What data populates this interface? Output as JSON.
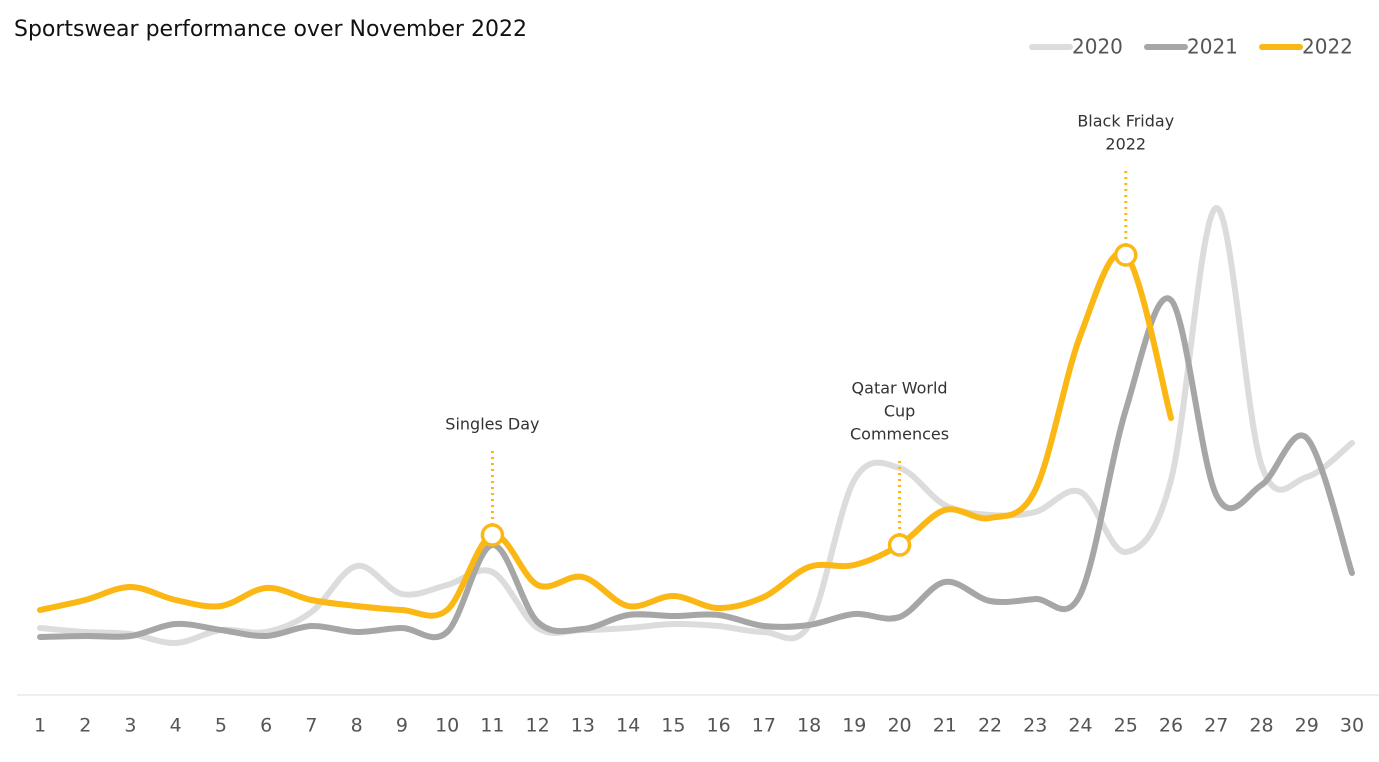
{
  "chart_data": {
    "type": "line",
    "title": "Sportswear performance over November 2022",
    "categories": [
      "1",
      "2",
      "3",
      "4",
      "5",
      "6",
      "7",
      "8",
      "9",
      "10",
      "11",
      "12",
      "13",
      "14",
      "15",
      "16",
      "17",
      "18",
      "19",
      "20",
      "21",
      "22",
      "23",
      "24",
      "25",
      "26",
      "27",
      "28",
      "29",
      "30"
    ],
    "ylim": [
      0,
      120
    ],
    "series": [
      {
        "name": "2020",
        "color": "#dcdcdc",
        "values": [
          13.4,
          12.6,
          12.2,
          10.4,
          13,
          12.6,
          16.6,
          25.8,
          20.2,
          22,
          24.6,
          13.4,
          13,
          13.4,
          14.2,
          13.8,
          12.6,
          14,
          43,
          45.4,
          38,
          36,
          36.6,
          40.6,
          28.6,
          43,
          97.4,
          46,
          43.6,
          50.4
        ]
      },
      {
        "name": "2021",
        "color": "#a6a6a6",
        "values": [
          11.6,
          11.8,
          11.8,
          14.2,
          13,
          11.8,
          13.8,
          12.6,
          13.4,
          12.6,
          30,
          14.6,
          13.2,
          16,
          15.8,
          16,
          13.8,
          14,
          16.2,
          15.6,
          22.6,
          18.8,
          19.2,
          20.2,
          57,
          79,
          40,
          42,
          51.4,
          24.4
        ]
      },
      {
        "name": "2022",
        "color": "#fbb714",
        "values": [
          17,
          19,
          21.6,
          19,
          17.8,
          21.4,
          19,
          17.8,
          17,
          17,
          32,
          22,
          23.6,
          17.8,
          19.8,
          17.4,
          19.6,
          25.6,
          26,
          30,
          37,
          35.4,
          41,
          72,
          88,
          55.4,
          null,
          null,
          null,
          null
        ]
      }
    ],
    "annotations": [
      {
        "x": "11",
        "label": [
          "Singles Day"
        ]
      },
      {
        "x": "20",
        "label": [
          "Qatar World",
          "Cup",
          "Commences"
        ]
      },
      {
        "x": "25",
        "label": [
          "Black Friday",
          "2022"
        ]
      }
    ]
  }
}
